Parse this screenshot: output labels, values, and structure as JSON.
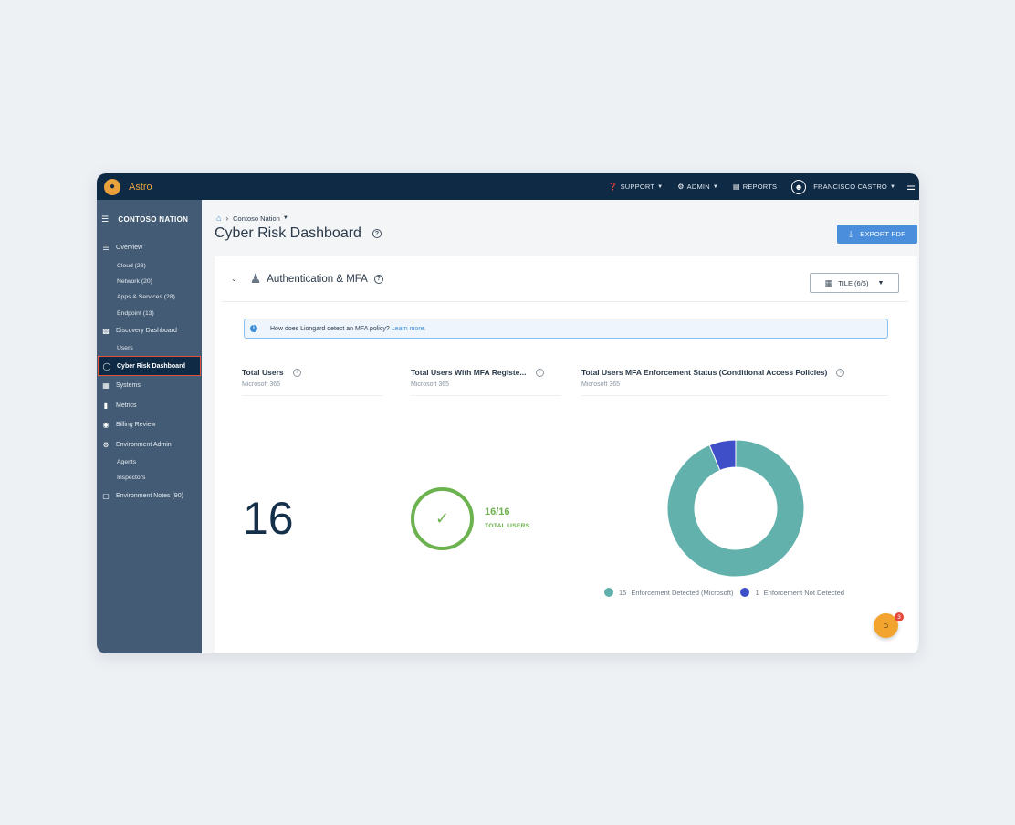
{
  "app": {
    "brand": "Astro"
  },
  "topbar": {
    "support": "SUPPORT",
    "admin": "ADMIN",
    "reports": "REPORTS",
    "user": "FRANCISCO CASTRO"
  },
  "sidebar": {
    "org": "CONTOSO NATION",
    "items": [
      {
        "label": "Overview"
      },
      {
        "label": "Cloud (23)"
      },
      {
        "label": "Network (20)"
      },
      {
        "label": "Apps & Services (28)"
      },
      {
        "label": "Endpoint (13)"
      },
      {
        "label": "Discovery Dashboard"
      },
      {
        "label": "Users"
      },
      {
        "label": "Cyber Risk Dashboard"
      },
      {
        "label": "Systems"
      },
      {
        "label": "Metrics"
      },
      {
        "label": "Billing Review"
      },
      {
        "label": "Environment Admin"
      },
      {
        "label": "Agents"
      },
      {
        "label": "Inspectors"
      },
      {
        "label": "Environment Notes (90)"
      }
    ]
  },
  "breadcrumb": {
    "current": "Contoso Nation"
  },
  "page": {
    "title": "Cyber Risk Dashboard",
    "export_label": "EXPORT PDF"
  },
  "section": {
    "title": "Authentication & MFA",
    "tile_label": "TILE (6/6)",
    "info_text": "How does Liongard detect an MFA policy?",
    "info_link": "Learn more."
  },
  "metrics": {
    "total_users": {
      "title": "Total Users",
      "source": "Microsoft 365",
      "value": "16"
    },
    "mfa_registered": {
      "title": "Total Users With MFA Registe...",
      "source": "Microsoft 365",
      "ratio": "16/16",
      "ratio_label": "TOTAL USERS"
    },
    "enforcement": {
      "title": "Total Users MFA Enforcement Status (Conditional Access Policies)",
      "source": "Microsoft 365"
    }
  },
  "chart_data": {
    "type": "pie",
    "series": [
      {
        "name": "Enforcement Detected (Microsoft)",
        "value": 15,
        "value_label": "15",
        "color": "#63b1ac"
      },
      {
        "name": "Enforcement Not Detected",
        "value": 1,
        "value_label": "1",
        "color": "#3f4fc8"
      }
    ]
  },
  "chat": {
    "badge": "3"
  }
}
